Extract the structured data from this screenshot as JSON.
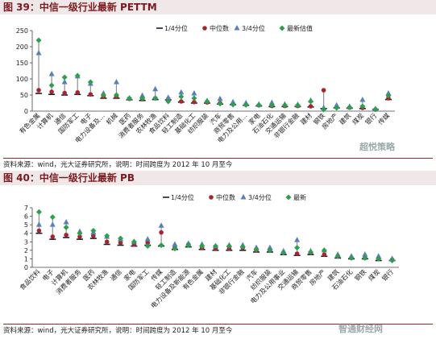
{
  "figures": [
    {
      "title": "图 39：中信一级行业最新 PETTM",
      "source": "资料来源：wind，光大证券研究所，说明：时间跨度为 2012 年 10 月至今",
      "watermark": "超悦策略"
    },
    {
      "title": "图 40：中信一级行业最新 PB",
      "source": "资料来源：wind，光大证券研究所，说明：时间跨度为 2012 年 10 月至今",
      "watermark": "智通财经网"
    }
  ],
  "chart_data": [
    {
      "type": "scatter",
      "title": "",
      "xlabel": "",
      "ylabel": "",
      "ylim": [
        0,
        250
      ],
      "yticks": [
        0,
        50,
        100,
        150,
        200,
        250
      ],
      "legend_position": "top-right",
      "colors": {
        "q1": "#1a1a2e",
        "median": "#a4262c",
        "q3": "#5b7fb8",
        "latest": "#2e9e4f",
        "range": "#909090"
      },
      "categories": [
        "有色金属",
        "计算机",
        "通信",
        "国防军工",
        "电子",
        "电力设备及…",
        "机械",
        "医药",
        "消费者服务",
        "农林牧渔",
        "食品饮料",
        "轻工制造",
        "基础化工",
        "纺织服装",
        "汽车",
        "商贸零售",
        "电力及公用…",
        "家电",
        "石油石化",
        "交通运输",
        "非银行金融",
        "建材",
        "钢铁",
        "房地产",
        "建筑",
        "煤炭",
        "银行",
        "传媒"
      ],
      "series": [
        {
          "name": "1/4分位",
          "values": [
            55,
            52,
            50,
            52,
            48,
            40,
            40,
            35,
            33,
            36,
            35,
            28,
            25,
            25,
            22,
            20,
            18,
            16,
            14,
            14,
            14,
            13,
            8,
            10,
            9,
            8,
            5,
            36
          ]
        },
        {
          "name": "中位数",
          "values": [
            65,
            60,
            56,
            58,
            52,
            45,
            45,
            38,
            37,
            40,
            38,
            30,
            28,
            27,
            25,
            22,
            20,
            18,
            16,
            16,
            16,
            15,
            65,
            13,
            11,
            10,
            5,
            40
          ]
        },
        {
          "name": "3/4分位",
          "values": [
            180,
            115,
            90,
            108,
            85,
            55,
            90,
            40,
            48,
            68,
            42,
            58,
            55,
            32,
            38,
            28,
            25,
            21,
            26,
            21,
            20,
            33,
            10,
            18,
            14,
            35,
            7,
            55
          ]
        },
        {
          "name": "最新估值",
          "values": [
            220,
            80,
            105,
            110,
            90,
            50,
            50,
            40,
            40,
            40,
            30,
            45,
            40,
            30,
            23,
            20,
            19,
            19,
            18,
            18,
            18,
            30,
            5,
            10,
            12,
            15,
            6,
            48
          ]
        }
      ]
    },
    {
      "type": "scatter",
      "title": "",
      "xlabel": "",
      "ylabel": "",
      "ylim": [
        0,
        7
      ],
      "yticks": [
        0,
        1,
        2,
        3,
        4,
        5,
        6,
        7
      ],
      "legend_position": "top-right",
      "colors": {
        "q1": "#1a1a2e",
        "median": "#a4262c",
        "q3": "#5b7fb8",
        "latest": "#2e9e4f",
        "range": "#909090"
      },
      "categories": [
        "食品饮料",
        "电子",
        "计算机",
        "消费者服务",
        "医药",
        "农林牧渔",
        "通信",
        "家电",
        "国防军工",
        "传媒",
        "轻工制造",
        "电力设备及新能源",
        "有色金属",
        "建材",
        "基础化工",
        "非银行金融",
        "汽车",
        "纺织服装",
        "电力及公用事业",
        "交通运输",
        "商贸零售",
        "房地产",
        "建筑",
        "石油石化",
        "钢铁",
        "煤炭",
        "银行"
      ],
      "series": [
        {
          "name": "1/4分位",
          "values": [
            4.0,
            3.3,
            3.5,
            3.3,
            3.4,
            2.7,
            2.6,
            2.5,
            2.6,
            2.5,
            2.1,
            2.4,
            2.1,
            2.0,
            2.0,
            2.0,
            1.8,
            1.8,
            1.5,
            1.4,
            1.5,
            1.3,
            1.1,
            1.0,
            1.0,
            0.8,
            0.8
          ]
        },
        {
          "name": "中位数",
          "values": [
            4.3,
            3.6,
            3.8,
            3.6,
            3.7,
            3.0,
            2.9,
            2.7,
            2.9,
            4.1,
            2.3,
            2.7,
            2.3,
            2.2,
            2.2,
            2.3,
            2.0,
            2.0,
            1.7,
            1.6,
            1.7,
            1.5,
            1.3,
            1.1,
            1.1,
            1.0,
            0.9
          ]
        },
        {
          "name": "3/4分位",
          "values": [
            5.0,
            5.0,
            5.3,
            4.2,
            4.1,
            3.6,
            3.3,
            3.0,
            3.3,
            4.9,
            2.7,
            2.8,
            2.7,
            2.5,
            2.6,
            2.6,
            2.3,
            2.3,
            1.9,
            3.2,
            1.9,
            2.0,
            1.5,
            1.3,
            1.5,
            1.3,
            1.0
          ]
        },
        {
          "name": "最新",
          "values": [
            6.5,
            5.9,
            4.7,
            4.0,
            4.3,
            3.7,
            3.4,
            3.0,
            2.5,
            2.6,
            2.2,
            2.6,
            2.5,
            2.5,
            2.5,
            2.4,
            2.1,
            2.0,
            1.7,
            2.3,
            1.8,
            2.0,
            1.3,
            1.1,
            1.1,
            1.0,
            0.8
          ]
        }
      ]
    }
  ]
}
